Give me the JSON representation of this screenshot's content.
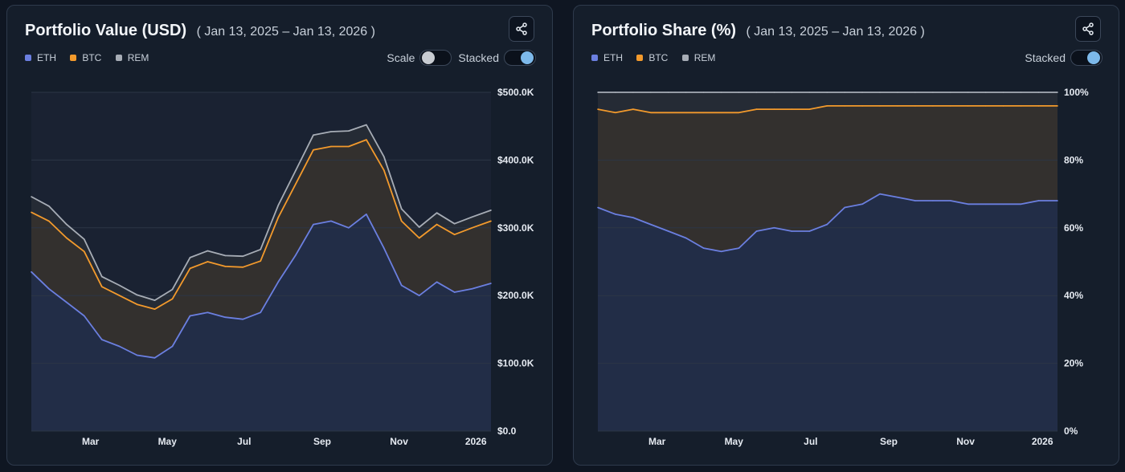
{
  "colors": {
    "eth": "#6b7fe0",
    "btc": "#f39a2c",
    "rem": "#a7adb6",
    "page_bg": "#0f1622",
    "card_bg": "#151e2b",
    "grid": "#2c3646"
  },
  "icons": {
    "share": "share-icon"
  },
  "chart_data": [
    {
      "type": "area",
      "stacked": true,
      "title": "Portfolio Value (USD)",
      "date_range": "( Jan 13, 2025 – Jan 13, 2026 )",
      "legend": [
        "ETH",
        "BTC",
        "REM"
      ],
      "legend_position": "top-left",
      "grid": true,
      "toggles": [
        {
          "label": "Scale",
          "state": "off"
        },
        {
          "label": "Stacked",
          "state": "on"
        }
      ],
      "x_range": [
        "2025-01-13",
        "2026-01-13"
      ],
      "x_ticks": [
        {
          "label": "Mar",
          "date": "2025-03-01"
        },
        {
          "label": "May",
          "date": "2025-05-01"
        },
        {
          "label": "Jul",
          "date": "2025-07-01"
        },
        {
          "label": "Sep",
          "date": "2025-09-01"
        },
        {
          "label": "Nov",
          "date": "2025-11-01"
        },
        {
          "label": "2026",
          "date": "2026-01-01"
        }
      ],
      "y_ticks": [
        {
          "label": "$500.0K",
          "value": 500000
        },
        {
          "label": "$400.0K",
          "value": 400000
        },
        {
          "label": "$300.0K",
          "value": 300000
        },
        {
          "label": "$200.0K",
          "value": 200000
        },
        {
          "label": "$100.0K",
          "value": 100000
        },
        {
          "label": "$0.0",
          "value": 0
        }
      ],
      "ylim": [
        0,
        500000
      ],
      "x": [
        "2025-01-13",
        "2025-01-27",
        "2025-02-10",
        "2025-02-24",
        "2025-03-10",
        "2025-03-24",
        "2025-04-07",
        "2025-04-21",
        "2025-05-05",
        "2025-05-19",
        "2025-06-02",
        "2025-06-16",
        "2025-06-30",
        "2025-07-14",
        "2025-07-28",
        "2025-08-11",
        "2025-08-25",
        "2025-09-08",
        "2025-09-22",
        "2025-10-06",
        "2025-10-20",
        "2025-11-03",
        "2025-11-17",
        "2025-12-01",
        "2025-12-15",
        "2025-12-29",
        "2026-01-13"
      ],
      "series": [
        {
          "name": "ETH",
          "values": [
            235000,
            210000,
            190000,
            170000,
            135000,
            125000,
            112000,
            108000,
            125000,
            170000,
            175000,
            168000,
            165000,
            175000,
            220000,
            260000,
            305000,
            310000,
            300000,
            320000,
            270000,
            215000,
            200000,
            220000,
            205000,
            210000,
            218000
          ]
        },
        {
          "name": "BTC",
          "values": [
            88000,
            100000,
            95000,
            95000,
            78000,
            75000,
            75000,
            72000,
            70000,
            70000,
            75000,
            75000,
            77000,
            76000,
            95000,
            105000,
            110000,
            110000,
            120000,
            110000,
            115000,
            95000,
            85000,
            85000,
            85000,
            90000,
            92000
          ]
        },
        {
          "name": "REM",
          "values": [
            23000,
            22000,
            20000,
            18000,
            15000,
            15000,
            14000,
            13000,
            14000,
            16000,
            16000,
            16000,
            16000,
            17000,
            18000,
            20000,
            22000,
            22000,
            23000,
            22000,
            20000,
            18000,
            16000,
            17000,
            16000,
            16000,
            16000
          ]
        }
      ]
    },
    {
      "type": "area",
      "stacked": true,
      "title": "Portfolio Share (%)",
      "date_range": "( Jan 13, 2025 – Jan 13, 2026 )",
      "legend": [
        "ETH",
        "BTC",
        "REM"
      ],
      "legend_position": "top-left",
      "grid": true,
      "toggles": [
        {
          "label": "Stacked",
          "state": "on"
        }
      ],
      "x_range": [
        "2025-01-13",
        "2026-01-13"
      ],
      "x_ticks": [
        {
          "label": "Mar",
          "date": "2025-03-01"
        },
        {
          "label": "May",
          "date": "2025-05-01"
        },
        {
          "label": "Jul",
          "date": "2025-07-01"
        },
        {
          "label": "Sep",
          "date": "2025-09-01"
        },
        {
          "label": "Nov",
          "date": "2025-11-01"
        },
        {
          "label": "2026",
          "date": "2026-01-01"
        }
      ],
      "y_ticks": [
        {
          "label": "100%",
          "value": 100
        },
        {
          "label": "80%",
          "value": 80
        },
        {
          "label": "60%",
          "value": 60
        },
        {
          "label": "40%",
          "value": 40
        },
        {
          "label": "20%",
          "value": 20
        },
        {
          "label": "0%",
          "value": 0
        }
      ],
      "ylim": [
        0,
        100
      ],
      "x": [
        "2025-01-13",
        "2025-01-27",
        "2025-02-10",
        "2025-02-24",
        "2025-03-10",
        "2025-03-24",
        "2025-04-07",
        "2025-04-21",
        "2025-05-05",
        "2025-05-19",
        "2025-06-02",
        "2025-06-16",
        "2025-06-30",
        "2025-07-14",
        "2025-07-28",
        "2025-08-11",
        "2025-08-25",
        "2025-09-08",
        "2025-09-22",
        "2025-10-06",
        "2025-10-20",
        "2025-11-03",
        "2025-11-17",
        "2025-12-01",
        "2025-12-15",
        "2025-12-29",
        "2026-01-13"
      ],
      "series": [
        {
          "name": "ETH",
          "values": [
            66,
            64,
            63,
            61,
            59,
            57,
            54,
            53,
            54,
            59,
            60,
            59,
            59,
            61,
            66,
            67,
            70,
            69,
            68,
            68,
            68,
            67,
            67,
            67,
            67,
            68,
            68
          ]
        },
        {
          "name": "BTC",
          "values": [
            29,
            30,
            32,
            33,
            35,
            37,
            40,
            41,
            40,
            36,
            35,
            36,
            36,
            35,
            30,
            29,
            26,
            27,
            28,
            28,
            28,
            29,
            29,
            29,
            29,
            28,
            28
          ]
        },
        {
          "name": "REM",
          "values": [
            5,
            6,
            5,
            6,
            6,
            6,
            6,
            6,
            6,
            5,
            5,
            5,
            5,
            4,
            4,
            4,
            4,
            4,
            4,
            4,
            4,
            4,
            4,
            4,
            4,
            4,
            4
          ]
        }
      ]
    }
  ]
}
